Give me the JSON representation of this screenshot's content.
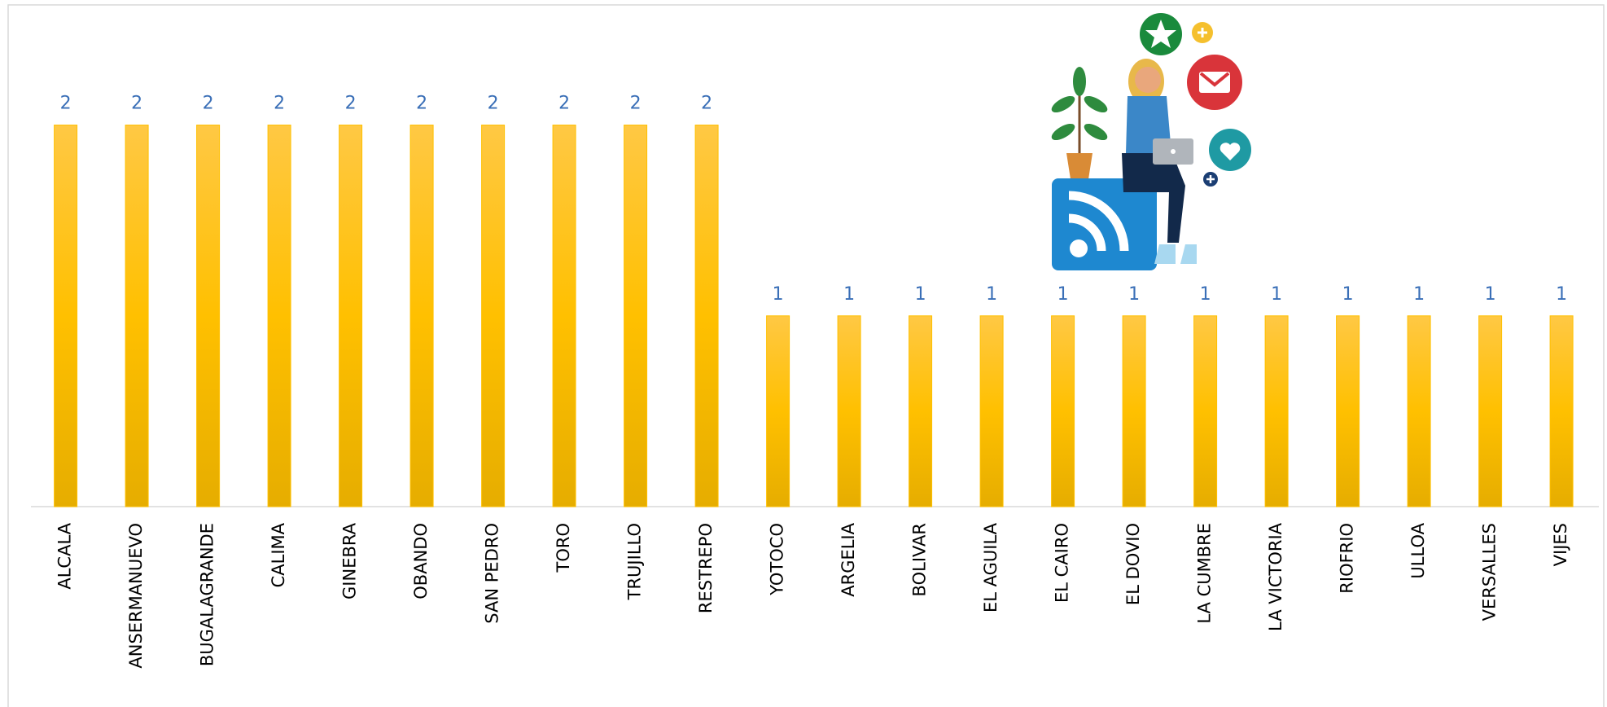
{
  "chart_data": {
    "type": "bar",
    "categories": [
      "ALCALA",
      "ANSERMANUEVO",
      "BUGALAGRANDE",
      "CALIMA",
      "GINEBRA",
      "OBANDO",
      "SAN PEDRO",
      "TORO",
      "TRUJILLO",
      "RESTREPO",
      "YOTOCO",
      "ARGELIA",
      "BOLIVAR",
      "EL AGUILA",
      "EL CAIRO",
      "EL DOVIO",
      "LA CUMBRE",
      "LA VICTORIA",
      "RIOFRIO",
      "ULLOA",
      "VERSALLES",
      "VIJES"
    ],
    "values": [
      2,
      2,
      2,
      2,
      2,
      2,
      2,
      2,
      2,
      2,
      1,
      1,
      1,
      1,
      1,
      1,
      1,
      1,
      1,
      1,
      1,
      1
    ],
    "color": "#ffc000",
    "ylim": [
      0,
      2.6
    ]
  }
}
